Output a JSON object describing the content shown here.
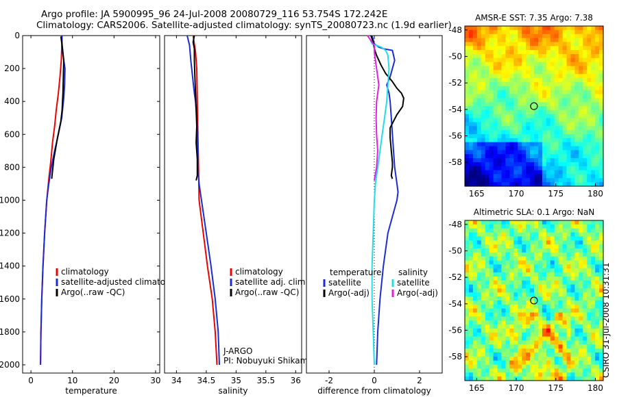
{
  "header": {
    "line1": "Argo profile: JA 5900995_96 24-Jul-2008 20080729_116 53.754S 172.242E",
    "line2": "Climatology: CARS2006. Satellite-adjusted climatology: synTS_20080723.nc (1.9d earlier)"
  },
  "side_label": "CSIRO 31-Jul-2008 10:31:31",
  "colors": {
    "red": "#ee0000",
    "blue": "#1a2bd6",
    "black": "#000000",
    "cyan": "#22dde6",
    "magenta": "#e31ee3"
  },
  "chart_data": [
    {
      "type": "line",
      "xlabel": "temperature",
      "ylabel": "",
      "xlim": [
        -2,
        31
      ],
      "ylim": [
        2050,
        0
      ],
      "xticks": [
        0,
        10,
        20,
        30
      ],
      "yticks": [
        0,
        200,
        400,
        600,
        800,
        1000,
        1200,
        1400,
        1600,
        1800,
        2000
      ],
      "legend": {
        "placement": "lower-right",
        "entries": [
          {
            "label": "climatology",
            "color": "#ee0000"
          },
          {
            "label": "satellite-adjusted climatology",
            "color": "#1a2bd6"
          },
          {
            "label": "Argo(..raw -QC)",
            "color": "#000000"
          }
        ]
      },
      "series": [
        {
          "color": "#ee0000",
          "points": [
            [
              7.5,
              0
            ],
            [
              7.4,
              80
            ],
            [
              7.3,
              150
            ],
            [
              7.0,
              250
            ],
            [
              6.6,
              350
            ],
            [
              6.1,
              450
            ],
            [
              5.7,
              550
            ],
            [
              5.2,
              650
            ],
            [
              4.8,
              760
            ],
            [
              4.3,
              870
            ],
            [
              3.8,
              1000
            ],
            [
              3.3,
              1200
            ],
            [
              2.9,
              1400
            ],
            [
              2.6,
              1600
            ],
            [
              2.4,
              1800
            ],
            [
              2.3,
              2000
            ]
          ]
        },
        {
          "color": "#1a2bd6",
          "points": [
            [
              7.4,
              0
            ],
            [
              7.5,
              50
            ],
            [
              7.6,
              100
            ],
            [
              8.2,
              200
            ],
            [
              8.1,
              300
            ],
            [
              7.9,
              380
            ],
            [
              7.4,
              500
            ],
            [
              6.6,
              600
            ],
            [
              5.7,
              700
            ],
            [
              4.9,
              800
            ],
            [
              4.3,
              900
            ],
            [
              3.8,
              1000
            ],
            [
              3.3,
              1200
            ],
            [
              2.9,
              1400
            ],
            [
              2.6,
              1600
            ],
            [
              2.4,
              1800
            ],
            [
              2.3,
              2000
            ]
          ]
        },
        {
          "color": "#000000",
          "points": [
            [
              7.2,
              5
            ],
            [
              7.6,
              80
            ],
            [
              7.9,
              150
            ],
            [
              7.8,
              250
            ],
            [
              7.7,
              350
            ],
            [
              7.5,
              450
            ],
            [
              7.2,
              520
            ],
            [
              6.4,
              620
            ],
            [
              5.5,
              750
            ],
            [
              5.0,
              870
            ]
          ]
        }
      ]
    },
    {
      "type": "line",
      "xlabel": "salinity",
      "ylabel": "",
      "xlim": [
        33.8,
        36.1
      ],
      "ylim": [
        2050,
        0
      ],
      "xticks": [
        34,
        34.5,
        35,
        35.5,
        36
      ],
      "yticks": [],
      "legend": {
        "placement": "lower-right",
        "entries": [
          {
            "label": "climatology",
            "color": "#ee0000"
          },
          {
            "label": "satellite adj. clim.",
            "color": "#1a2bd6"
          },
          {
            "label": "Argo(..raw -QC)",
            "color": "#000000"
          }
        ]
      },
      "annotation": [
        "J-ARGO",
        "PI: Nobuyuki Shikama"
      ],
      "series": [
        {
          "color": "#ee0000",
          "points": [
            [
              34.28,
              0
            ],
            [
              34.32,
              100
            ],
            [
              34.34,
              200
            ],
            [
              34.35,
              400
            ],
            [
              34.36,
              600
            ],
            [
              34.37,
              800
            ],
            [
              34.38,
              1000
            ],
            [
              34.45,
              1200
            ],
            [
              34.52,
              1400
            ],
            [
              34.6,
              1600
            ],
            [
              34.65,
              1800
            ],
            [
              34.68,
              2000
            ]
          ]
        },
        {
          "color": "#1a2bd6",
          "points": [
            [
              34.18,
              0
            ],
            [
              34.2,
              30
            ],
            [
              34.22,
              60
            ],
            [
              34.24,
              150
            ],
            [
              34.27,
              250
            ],
            [
              34.3,
              350
            ],
            [
              34.32,
              400
            ],
            [
              34.34,
              500
            ],
            [
              34.35,
              600
            ],
            [
              34.36,
              800
            ],
            [
              34.38,
              900
            ],
            [
              34.42,
              1000
            ],
            [
              34.5,
              1200
            ],
            [
              34.58,
              1400
            ],
            [
              34.65,
              1600
            ],
            [
              34.7,
              1800
            ],
            [
              34.72,
              2000
            ]
          ]
        },
        {
          "color": "#000000",
          "points": [
            [
              34.3,
              0
            ],
            [
              34.28,
              40
            ],
            [
              34.3,
              80
            ],
            [
              34.3,
              150
            ],
            [
              34.31,
              250
            ],
            [
              34.32,
              350
            ],
            [
              34.33,
              450
            ],
            [
              34.34,
              550
            ],
            [
              34.33,
              650
            ],
            [
              34.35,
              750
            ],
            [
              34.35,
              850
            ],
            [
              34.33,
              880
            ]
          ]
        }
      ]
    },
    {
      "type": "line",
      "xlabel": "difference from climatology",
      "ylabel": "",
      "xlim": [
        -3.0,
        3.0
      ],
      "ylim": [
        2050,
        0
      ],
      "xticks": [
        -2,
        0,
        2
      ],
      "yticks": [],
      "zero_line": 0,
      "legend": {
        "placement": "lower-center",
        "columns": [
          {
            "header": "temperature",
            "entries": [
              {
                "label": "satellite",
                "color": "#1a2bd6"
              },
              {
                "label": "Argo(-adj)",
                "color": "#000000"
              }
            ]
          },
          {
            "header": "salinity",
            "entries": [
              {
                "label": "satellite",
                "color": "#22dde6"
              },
              {
                "label": "Argo(-adj)",
                "color": "#e31ee3"
              }
            ]
          }
        ]
      },
      "series": [
        {
          "color": "#1a2bd6",
          "points": [
            [
              -0.1,
              0
            ],
            [
              0.0,
              50
            ],
            [
              0.2,
              70
            ],
            [
              0.4,
              80
            ],
            [
              0.8,
              90
            ],
            [
              0.9,
              150
            ],
            [
              0.8,
              200
            ],
            [
              0.7,
              250
            ],
            [
              0.55,
              300
            ],
            [
              0.65,
              350
            ],
            [
              0.7,
              400
            ],
            [
              0.75,
              500
            ],
            [
              0.8,
              600
            ],
            [
              0.85,
              700
            ],
            [
              0.9,
              800
            ],
            [
              1.0,
              900
            ],
            [
              1.05,
              950
            ],
            [
              1.0,
              1000
            ],
            [
              0.8,
              1100
            ],
            [
              0.6,
              1200
            ],
            [
              0.4,
              1400
            ],
            [
              0.25,
              1600
            ],
            [
              0.15,
              1800
            ],
            [
              0.1,
              2000
            ]
          ]
        },
        {
          "color": "#000000",
          "points": [
            [
              -0.15,
              0
            ],
            [
              -0.1,
              20
            ],
            [
              -0.05,
              40
            ],
            [
              0.0,
              80
            ],
            [
              0.1,
              120
            ],
            [
              0.3,
              180
            ],
            [
              0.5,
              230
            ],
            [
              0.8,
              280
            ],
            [
              1.0,
              320
            ],
            [
              1.2,
              350
            ],
            [
              1.3,
              380
            ],
            [
              1.25,
              430
            ],
            [
              1.0,
              480
            ],
            [
              0.85,
              520
            ],
            [
              0.7,
              560
            ],
            [
              0.7,
              620
            ],
            [
              0.75,
              700
            ],
            [
              0.8,
              770
            ],
            [
              0.8,
              800
            ],
            [
              0.75,
              850
            ],
            [
              0.8,
              870
            ]
          ]
        },
        {
          "color": "#22dde6",
          "points": [
            [
              -0.3,
              0
            ],
            [
              -0.2,
              20
            ],
            [
              -0.1,
              50
            ],
            [
              0.3,
              70
            ],
            [
              0.5,
              90
            ],
            [
              0.6,
              120
            ],
            [
              0.65,
              200
            ],
            [
              0.6,
              300
            ],
            [
              0.55,
              400
            ],
            [
              0.45,
              500
            ],
            [
              0.35,
              600
            ],
            [
              0.25,
              700
            ],
            [
              0.15,
              800
            ],
            [
              0.05,
              900
            ],
            [
              0.0,
              1000
            ],
            [
              -0.05,
              1200
            ],
            [
              -0.1,
              1400
            ],
            [
              -0.1,
              1600
            ],
            [
              -0.05,
              1800
            ],
            [
              0.0,
              2000
            ]
          ]
        },
        {
          "color": "#e31ee3",
          "points": [
            [
              -0.3,
              0
            ],
            [
              -0.1,
              40
            ],
            [
              0.0,
              60
            ],
            [
              0.0,
              80
            ],
            [
              0.0,
              100
            ],
            [
              0.05,
              150
            ],
            [
              0.1,
              200
            ],
            [
              0.15,
              250
            ],
            [
              0.2,
              300
            ],
            [
              0.15,
              350
            ],
            [
              0.1,
              400
            ],
            [
              0.08,
              500
            ],
            [
              0.1,
              600
            ],
            [
              0.15,
              700
            ],
            [
              0.1,
              800
            ],
            [
              0.0,
              880
            ]
          ]
        }
      ]
    },
    {
      "type": "heatmap",
      "title": "AMSR-E SST: 7.35 Argo: 7.38",
      "xlim": [
        163.5,
        181
      ],
      "ylim": [
        -59.8,
        -47.7
      ],
      "xticks": [
        165,
        170,
        175,
        180
      ],
      "yticks": [
        -48,
        -50,
        -52,
        -54,
        -56,
        -58
      ],
      "marker": {
        "x": 172.242,
        "y": -53.754
      },
      "description_colors": {
        "warm": "#dfe612",
        "cool": "#0b2aa0"
      }
    },
    {
      "type": "heatmap",
      "title": "Altimetric SLA: 0.1 Argo: NaN",
      "xlim": [
        163.5,
        181
      ],
      "ylim": [
        -59.8,
        -47.7
      ],
      "xticks": [
        165,
        170,
        175,
        180
      ],
      "yticks": [
        -48,
        -50,
        -52,
        -54,
        -56,
        -58
      ],
      "marker": {
        "x": 172.242,
        "y": -53.754
      }
    }
  ]
}
